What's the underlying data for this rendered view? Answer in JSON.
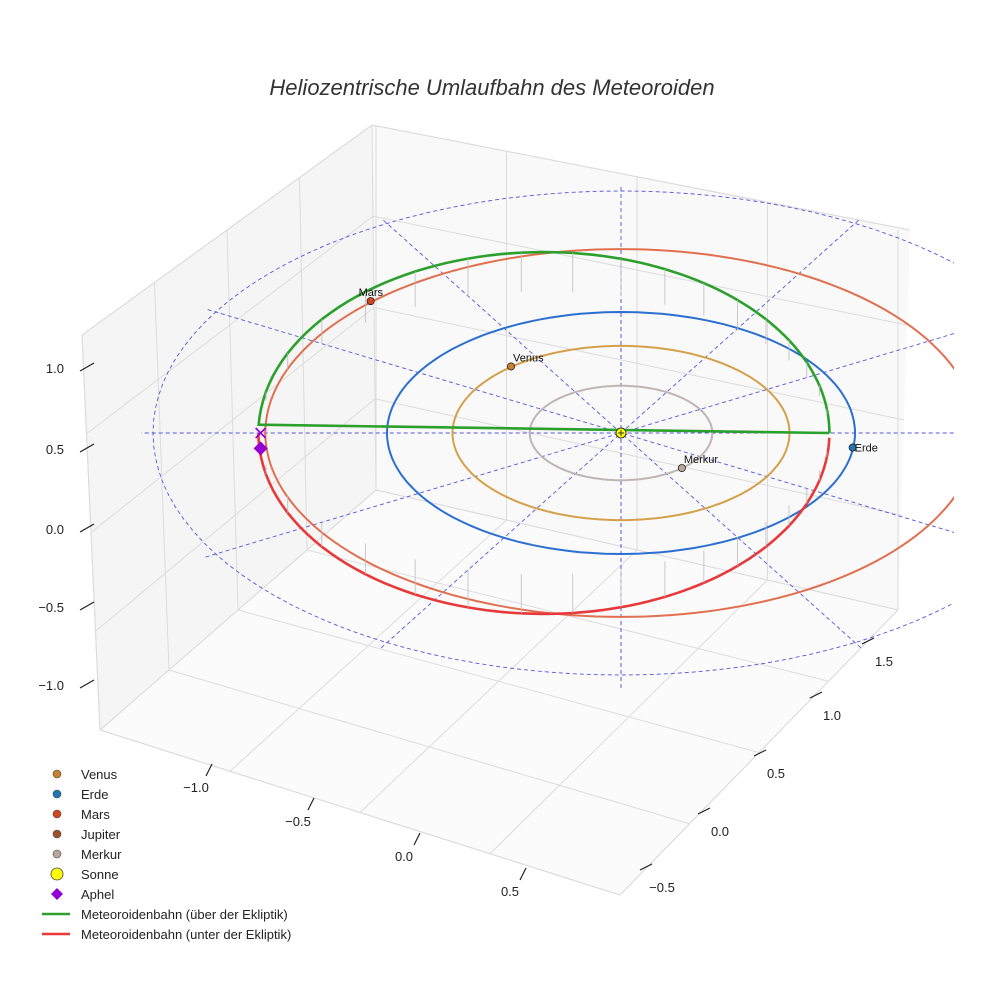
{
  "chart_data": {
    "type": "line",
    "title": "Heliozentrische Umlaufbahn des Meteoroiden",
    "axes": {
      "x": {
        "ticks": [
          -1.0,
          -0.5,
          0.0,
          0.5
        ],
        "tick_labels": [
          "−1.0",
          "−0.5",
          "0.0",
          "0.5"
        ]
      },
      "y": {
        "ticks": [
          -0.5,
          0.0,
          0.5,
          1.0,
          1.5
        ],
        "tick_labels": [
          "−0.5",
          "0.0",
          "0.5",
          "1.0",
          "1.5"
        ]
      },
      "z": {
        "ticks": [
          -1.0,
          -0.5,
          0.0,
          0.5,
          1.0
        ],
        "tick_labels": [
          "−1.0",
          "−0.5",
          "0.0",
          "0.5",
          "1.0"
        ]
      }
    },
    "grid": true,
    "legend_position": "bottom-left",
    "colors": {
      "venus": "#c8822b",
      "erde": "#1f77b4",
      "mars": "#d2461f",
      "jupiter": "#a0522d",
      "merkur": "#b8a79a",
      "sonne": "#ffff00",
      "aphel": "#9400d3",
      "meteor_above": "#2ca02c",
      "meteor_below": "#e8393a",
      "orbit_merkur": "#c0b4b4",
      "orbit_venus": "#d4a04a",
      "orbit_erde": "#2b6fd0",
      "orbit_mars": "#e07050",
      "ecliptic_guides": "#5555dd"
    },
    "orbits": [
      {
        "name": "Merkur",
        "radius_au": 0.39
      },
      {
        "name": "Venus",
        "radius_au": 0.72
      },
      {
        "name": "Erde",
        "radius_au": 1.0
      },
      {
        "name": "Mars",
        "radius_au": 1.52
      }
    ],
    "bodies": [
      {
        "name": "Venus",
        "label": "Venus",
        "x": -0.47,
        "y": -0.55,
        "z": 0.0
      },
      {
        "name": "Erde",
        "label": "Erde",
        "x": 0.99,
        "y": 0.12,
        "z": 0.0
      },
      {
        "name": "Mars",
        "label": "Mars",
        "x": -1.07,
        "y": -1.09,
        "z": 0.0
      },
      {
        "name": "Merkur",
        "label": "Merkur",
        "x": 0.26,
        "y": 0.29,
        "z": 0.0
      },
      {
        "name": "Sonne",
        "label": "",
        "x": 0.0,
        "y": 0.0,
        "z": 0.0
      }
    ],
    "aphel": {
      "x": -1.54,
      "y": 0.0,
      "z": -0.12
    },
    "meteoroid": {
      "semi_major_axis_au": 1.22,
      "eccentricity": 0.27,
      "inclination_deg": 5.0,
      "perihelion_angle_deg": 0.0
    },
    "legend": [
      {
        "label": "Venus",
        "marker": "circle",
        "color": "#c8822b"
      },
      {
        "label": "Erde",
        "marker": "circle",
        "color": "#1f77b4"
      },
      {
        "label": "Mars",
        "marker": "circle",
        "color": "#d2461f"
      },
      {
        "label": "Jupiter",
        "marker": "circle",
        "color": "#a0522d"
      },
      {
        "label": "Merkur",
        "marker": "circle",
        "color": "#b8a79a"
      },
      {
        "label": "Sonne",
        "marker": "circle-large",
        "color": "#ffff00"
      },
      {
        "label": "Aphel",
        "marker": "diamond",
        "color": "#9400d3"
      },
      {
        "label": "Meteoroidenbahn (über der Ekliptik)",
        "marker": "line",
        "color": "#2ca02c"
      },
      {
        "label": "Meteoroidenbahn (unter der Ekliptik)",
        "marker": "line",
        "color": "#e8393a"
      }
    ]
  }
}
